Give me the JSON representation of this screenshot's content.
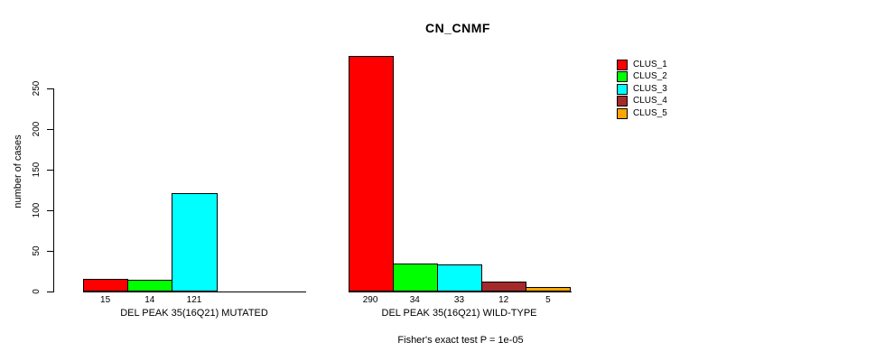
{
  "chart_data": {
    "type": "bar",
    "title": "CN_CNMF",
    "ylabel": "number of cases",
    "xlabel": "",
    "ylim": [
      0,
      290
    ],
    "yticks": [
      0,
      50,
      100,
      150,
      200,
      250
    ],
    "grid": false,
    "legend_position": "top-right",
    "categories": [
      "DEL PEAK 35(16Q21) MUTATED",
      "DEL PEAK 35(16Q21) WILD-TYPE"
    ],
    "series": [
      {
        "name": "CLUS_1",
        "color": "#ff0000",
        "values": [
          15,
          290
        ]
      },
      {
        "name": "CLUS_2",
        "color": "#00ff00",
        "values": [
          14,
          34
        ]
      },
      {
        "name": "CLUS_3",
        "color": "#00ffff",
        "values": [
          121,
          33
        ]
      },
      {
        "name": "CLUS_4",
        "color": "#a52a2a",
        "values": [
          0,
          12
        ]
      },
      {
        "name": "CLUS_5",
        "color": "#ffa500",
        "values": [
          0,
          5
        ]
      }
    ],
    "bar_value_labels": [
      [
        "15",
        "14",
        "121",
        "",
        ""
      ],
      [
        "290",
        "34",
        "33",
        "12",
        "5"
      ]
    ],
    "annotation": "Fisher's exact test P = 1e-05"
  }
}
